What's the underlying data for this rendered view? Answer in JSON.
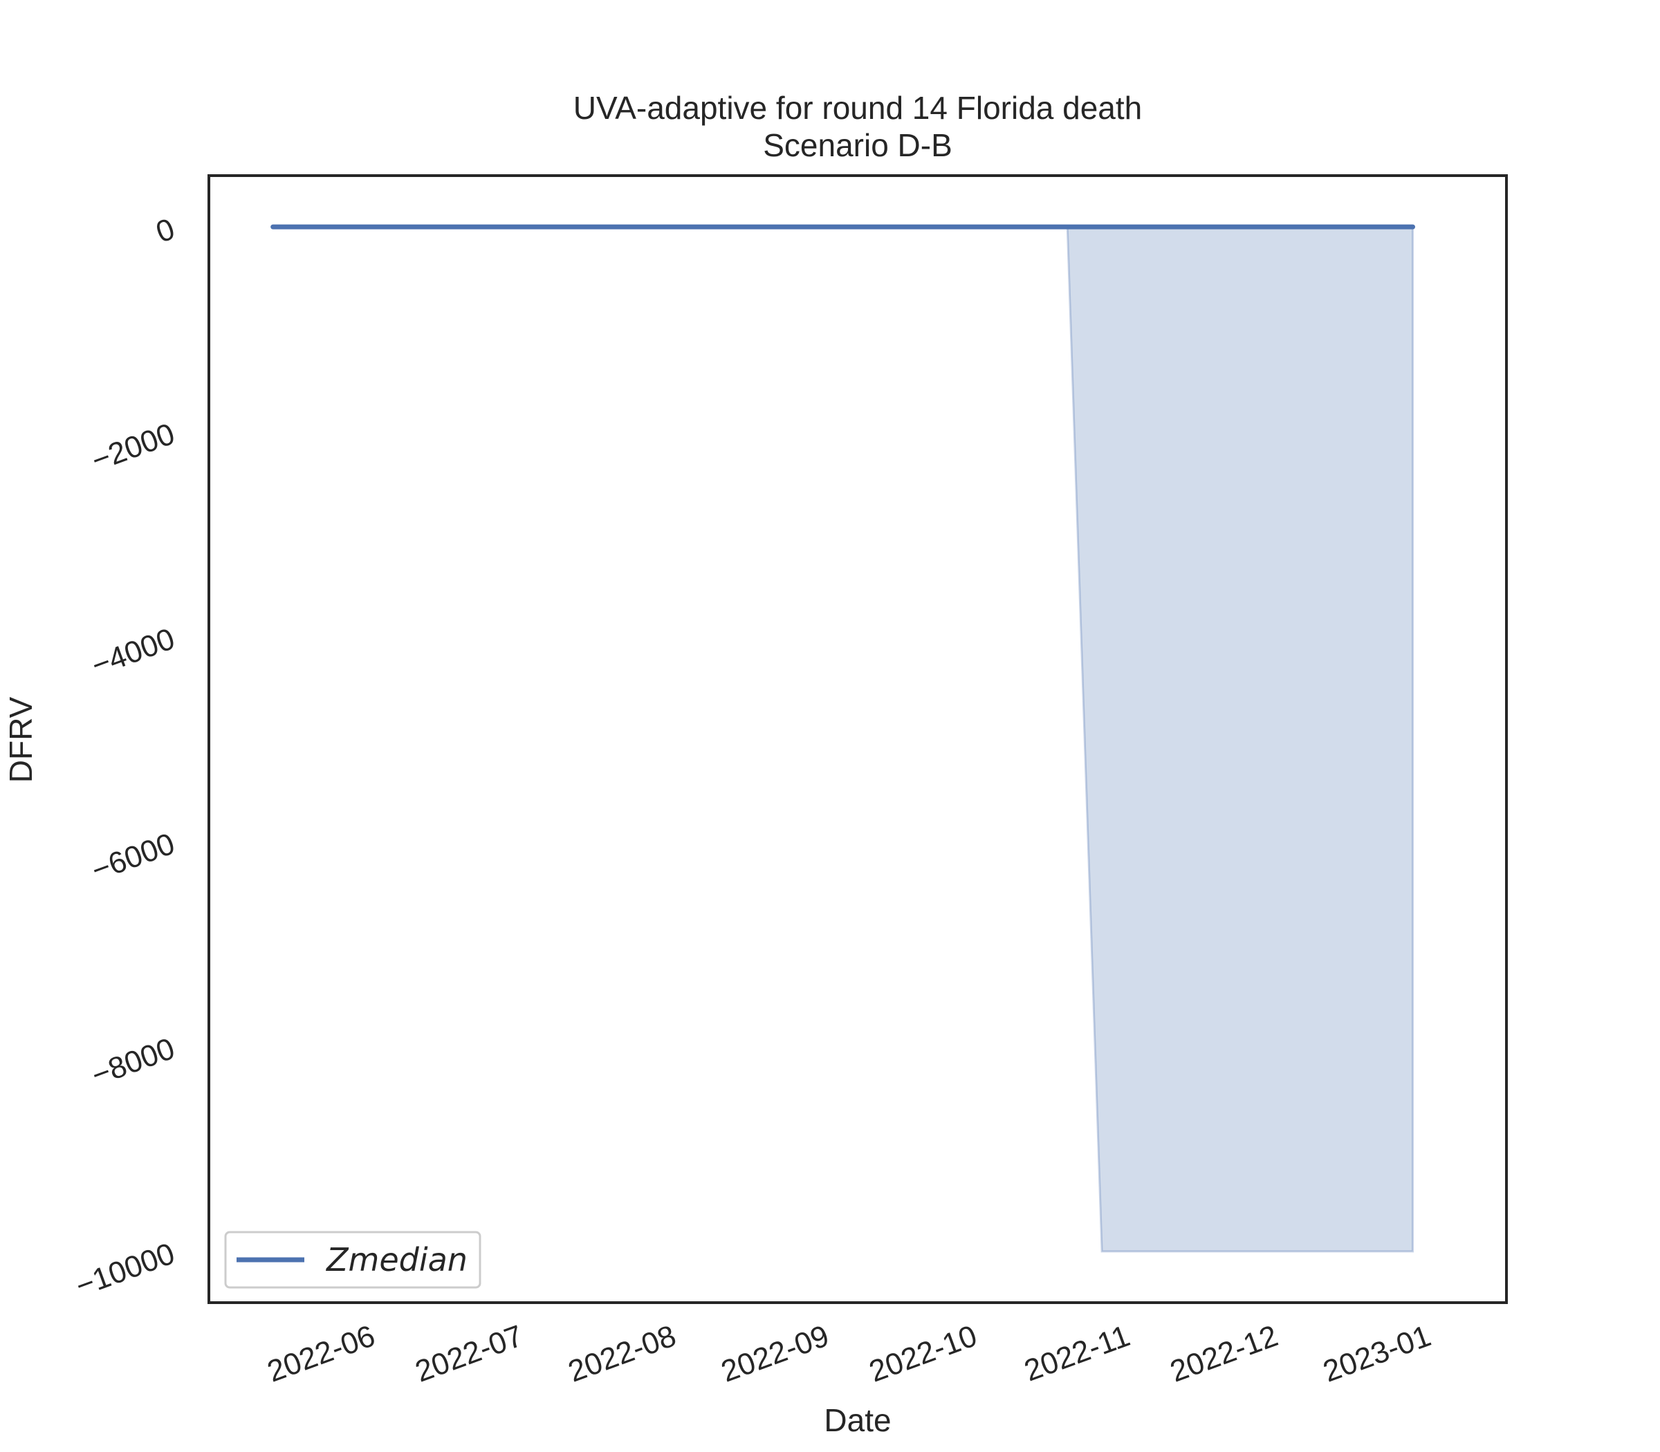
{
  "chart_data": {
    "type": "line",
    "title": "UVA-adaptive for round 14 Florida death",
    "subtitle": "Scenario D-B",
    "xlabel": "Date",
    "ylabel": "DFRV",
    "x_ticks": [
      "2022-06",
      "2022-07",
      "2022-08",
      "2022-09",
      "2022-10",
      "2022-11",
      "2022-12",
      "2023-01"
    ],
    "y_ticks": [
      0,
      -2000,
      -4000,
      -6000,
      -8000,
      -10000
    ],
    "y_tick_labels": [
      "0",
      "−2000",
      "−4000",
      "−6000",
      "−8000",
      "−10000"
    ],
    "xlim": [
      "2022-05-08",
      "2023-01-26"
    ],
    "ylim": [
      -10500,
      500
    ],
    "grid": false,
    "legend_position": "lower-left",
    "colors": {
      "line": "#4c72b0",
      "band": "#4c72b0",
      "axes": "#262626"
    },
    "series": [
      {
        "name": "Zmedian",
        "x": [
          "2022-05-21",
          "2023-01-07"
        ],
        "y": [
          0,
          0
        ]
      }
    ],
    "band": {
      "x": [
        "2022-10-29",
        "2022-11-05",
        "2023-01-07"
      ],
      "lower": [
        0,
        -10000,
        -10000
      ],
      "upper": [
        0,
        0,
        0
      ]
    }
  }
}
